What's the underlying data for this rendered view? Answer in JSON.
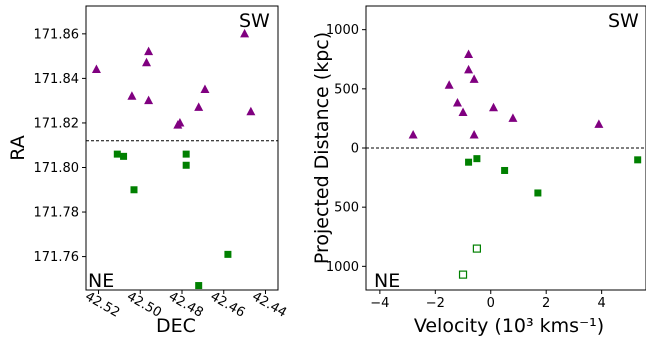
{
  "chart_data": [
    {
      "type": "scatter",
      "xlabel": "DEC",
      "ylabel": "RA",
      "xlim": [
        42.526,
        42.434
      ],
      "ylim": [
        171.745,
        171.8725
      ],
      "x_reversed": true,
      "x_ticks": [
        42.52,
        42.5,
        42.48,
        42.46,
        42.44
      ],
      "x_tick_labels": [
        "42.52",
        "42.50",
        "42.48",
        "42.46",
        "42.44"
      ],
      "y_ticks": [
        171.76,
        171.78,
        171.8,
        171.82,
        171.84,
        171.86
      ],
      "y_tick_labels": [
        "171.76",
        "171.78",
        "171.80",
        "171.82",
        "171.84",
        "171.86"
      ],
      "reference_line": {
        "orientation": "horizontal",
        "value": 171.812,
        "style": "dashed"
      },
      "annotations": [
        {
          "text": "SW",
          "position": "top-right"
        },
        {
          "text": "NE",
          "position": "bottom-left"
        }
      ],
      "series": [
        {
          "marker": "triangle",
          "color": "#800080",
          "points": [
            [
              42.521,
              171.844
            ],
            [
              42.504,
              171.832
            ],
            [
              42.497,
              171.847
            ],
            [
              42.496,
              171.852
            ],
            [
              42.496,
              171.83
            ],
            [
              42.482,
              171.819
            ],
            [
              42.481,
              171.82
            ],
            [
              42.472,
              171.827
            ],
            [
              42.469,
              171.835
            ],
            [
              42.45,
              171.86
            ],
            [
              42.447,
              171.825
            ]
          ]
        },
        {
          "marker": "square",
          "color": "#008000",
          "points": [
            [
              42.511,
              171.806
            ],
            [
              42.508,
              171.805
            ],
            [
              42.503,
              171.79
            ],
            [
              42.478,
              171.806
            ],
            [
              42.478,
              171.801
            ],
            [
              42.472,
              171.747
            ],
            [
              42.458,
              171.761
            ]
          ]
        }
      ]
    },
    {
      "type": "scatter",
      "xlabel": "Velocity (10³ kms⁻¹)",
      "ylabel": "Projected Distance (kpc)",
      "xlim": [
        -4.5,
        5.6
      ],
      "ylim": [
        -1200,
        1200
      ],
      "x_ticks": [
        -4,
        -2,
        0,
        2,
        4
      ],
      "x_tick_labels": [
        "−4",
        "−2",
        "0",
        "2",
        "4"
      ],
      "y_ticks": [
        1000,
        500,
        0,
        -500,
        -1000
      ],
      "y_tick_labels": [
        "1000",
        "500",
        "0",
        "500",
        "1000"
      ],
      "reference_line": {
        "orientation": "horizontal",
        "value": 0,
        "style": "dashed"
      },
      "annotations": [
        {
          "text": "SW",
          "position": "top-right"
        },
        {
          "text": "NE",
          "position": "bottom-left"
        }
      ],
      "series": [
        {
          "marker": "triangle",
          "color": "#800080",
          "points": [
            [
              -2.8,
              110
            ],
            [
              -1.5,
              530
            ],
            [
              -1.2,
              380
            ],
            [
              -1.0,
              300
            ],
            [
              -0.8,
              790
            ],
            [
              -0.8,
              660
            ],
            [
              -0.6,
              580
            ],
            [
              -0.6,
              110
            ],
            [
              0.1,
              340
            ],
            [
              0.8,
              250
            ],
            [
              3.9,
              200
            ]
          ]
        },
        {
          "marker": "square",
          "color": "#008000",
          "points": [
            [
              -0.8,
              -120
            ],
            [
              -0.5,
              -90
            ],
            [
              0.5,
              -190
            ],
            [
              1.7,
              -380
            ],
            [
              5.3,
              -100
            ]
          ]
        },
        {
          "marker": "square-open",
          "color": "#008000",
          "points": [
            [
              -0.5,
              -850
            ],
            [
              -1.0,
              -1070
            ]
          ]
        }
      ]
    }
  ]
}
